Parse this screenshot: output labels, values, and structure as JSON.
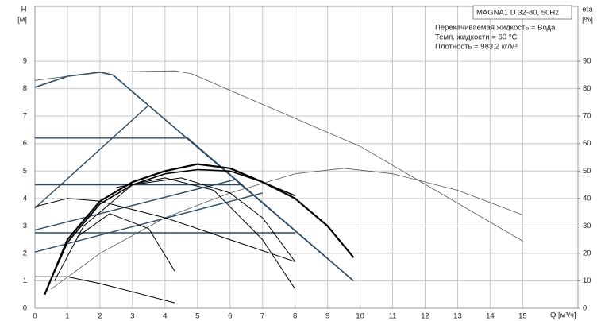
{
  "chart_data": {
    "type": "line",
    "title": "MAGNA1 D 32-80, 50Hz",
    "notes": [
      "Перекачиваемая жидкость = Вода",
      "Темп. жидкости = 60 °C",
      "Плотность = 983.2 кг/м³"
    ],
    "x_label": "Q [м³/ч]",
    "y_label": "H",
    "y_unit": "[м]",
    "y2_label": "eta",
    "y2_unit": "[%]",
    "xlim": [
      0,
      16.7
    ],
    "ylim": [
      0,
      11
    ],
    "y2lim": [
      0,
      110
    ],
    "xticks": [
      0,
      1,
      2,
      3,
      4,
      5,
      6,
      7,
      8,
      9,
      10,
      11,
      12,
      13,
      14,
      15
    ],
    "yticks": [
      0,
      1,
      2,
      3,
      4,
      5,
      6,
      7,
      8,
      9
    ],
    "y2ticks": [
      0,
      10,
      20,
      30,
      40,
      50,
      60,
      70,
      80,
      90
    ],
    "grid": true,
    "series": [
      {
        "color": "#2b4a66",
        "line_width": 1.6,
        "x": [
          0,
          1,
          2,
          2.4,
          9.8
        ],
        "values": [
          8.05,
          8.45,
          8.6,
          8.5,
          1.0
        ]
      },
      {
        "color": "#555555",
        "line_width": 0.8,
        "x": [
          0,
          2,
          4.3,
          4.8,
          10,
          15
        ],
        "values": [
          8.3,
          8.6,
          8.65,
          8.55,
          5.9,
          2.45
        ]
      },
      {
        "color": "#555555",
        "line_width": 0.8,
        "axis": "y2",
        "x": [
          0.5,
          2,
          4,
          6,
          8,
          9.5,
          11,
          13,
          15
        ],
        "values": [
          7,
          20,
          33,
          42,
          49,
          51,
          49,
          43,
          34
        ]
      },
      {
        "color": "#2b4a66",
        "line_width": 1.4,
        "x": [
          0,
          4.7,
          9.8
        ],
        "values": [
          6.2,
          6.2,
          1.0
        ]
      },
      {
        "color": "#2b4a66",
        "line_width": 1.4,
        "x": [
          0,
          6.4
        ],
        "values": [
          4.5,
          4.5
        ]
      },
      {
        "color": "#2b4a66",
        "line_width": 1.4,
        "x": [
          0,
          8
        ],
        "values": [
          2.75,
          2.75
        ]
      },
      {
        "color": "#2b4a66",
        "line_width": 1.4,
        "x": [
          0,
          3.5
        ],
        "values": [
          3.65,
          7.4
        ]
      },
      {
        "color": "#2b4a66",
        "line_width": 1.4,
        "x": [
          0,
          6.2
        ],
        "values": [
          2.85,
          4.7
        ]
      },
      {
        "color": "#2b4a66",
        "line_width": 1.4,
        "x": [
          0,
          7
        ],
        "values": [
          2.05,
          4.2
        ]
      },
      {
        "color": "#000000",
        "line_width": 2.2,
        "x": [
          0.3,
          1,
          2,
          3,
          4,
          5,
          6,
          7,
          8,
          9,
          9.8
        ],
        "values": [
          0.5,
          2.5,
          3.9,
          4.6,
          5.0,
          5.25,
          5.1,
          4.6,
          4.0,
          3.0,
          1.85
        ]
      },
      {
        "color": "#000000",
        "line_width": 1.6,
        "x": [
          0.4,
          1,
          2,
          3,
          4,
          5,
          6,
          7,
          8
        ],
        "values": [
          0.8,
          2.4,
          3.8,
          4.5,
          4.9,
          5.05,
          5.0,
          4.6,
          4.1
        ]
      },
      {
        "color": "#000000",
        "line_width": 1.0,
        "x": [
          0.6,
          1.5,
          3,
          4.5,
          6,
          7,
          8
        ],
        "values": [
          1.0,
          3.0,
          4.5,
          4.75,
          4.2,
          3.3,
          1.7
        ]
      },
      {
        "color": "#000000",
        "line_width": 1.0,
        "x": [
          0,
          1,
          2,
          4,
          6,
          8
        ],
        "values": [
          3.7,
          4.0,
          3.9,
          3.3,
          2.5,
          1.7
        ]
      },
      {
        "color": "#000000",
        "line_width": 1.0,
        "x": [
          1.3,
          2.3,
          3.5,
          4.3
        ],
        "values": [
          2.6,
          3.45,
          2.9,
          1.35
        ]
      },
      {
        "color": "#000000",
        "line_width": 1.0,
        "x": [
          0,
          1,
          2,
          3,
          4.3
        ],
        "values": [
          1.15,
          1.15,
          0.9,
          0.6,
          0.2
        ]
      },
      {
        "color": "#000000",
        "line_width": 1.0,
        "x": [
          2.5,
          4,
          5.5,
          7,
          8
        ],
        "values": [
          4.4,
          4.75,
          4.3,
          2.5,
          0.7
        ]
      }
    ]
  }
}
